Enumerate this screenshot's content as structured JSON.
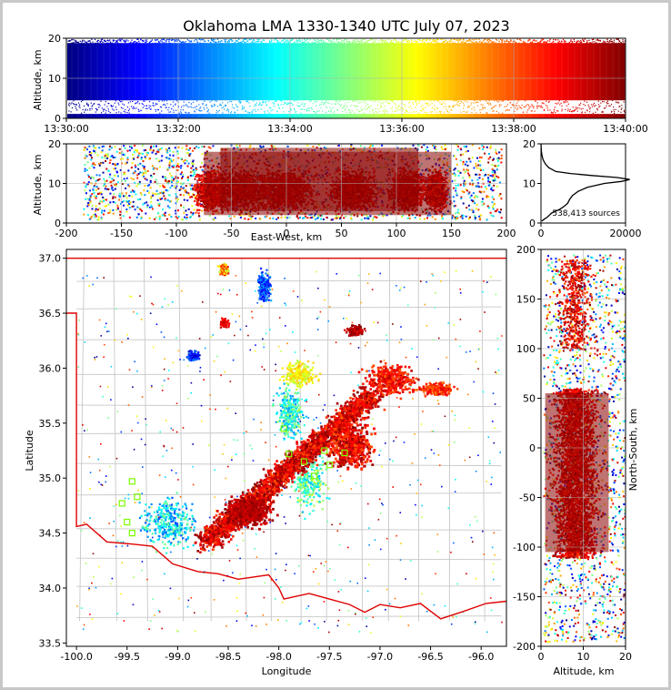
{
  "title": "Oklahoma LMA 1330-1340 UTC July 07, 2023",
  "chart_data": [
    {
      "id": "time_altitude",
      "type": "scatter",
      "xlabel": "",
      "ylabel": "Altitude, km",
      "x_ticks": [
        "13:30:00",
        "13:32:00",
        "13:34:00",
        "13:36:00",
        "13:38:00",
        "13:40:00"
      ],
      "x_range_minutes": [
        0,
        10
      ],
      "ylim": [
        0,
        20
      ],
      "y_ticks": [
        0,
        10,
        20
      ],
      "color_scale": "jet colormap by time, blue (13:30) to dark red (13:40)",
      "grid": true
    },
    {
      "id": "ew_altitude",
      "type": "scatter",
      "xlabel": "East-West, km",
      "ylabel": "Altitude, km",
      "xlim": [
        -200,
        200
      ],
      "x_ticks": [
        -200,
        -150,
        -100,
        -50,
        0,
        50,
        100,
        150,
        200
      ],
      "ylim": [
        0,
        20
      ],
      "y_ticks": [
        0,
        10,
        20
      ],
      "grid": true
    },
    {
      "id": "altitude_histogram",
      "type": "line",
      "xlim": [
        0,
        20000
      ],
      "x_ticks": [
        0,
        20000
      ],
      "ylim": [
        0,
        20
      ],
      "y_ticks": [
        0,
        10,
        20
      ],
      "annotation": "538,413 sources",
      "profile": [
        {
          "alt": 0.5,
          "count": 200
        },
        {
          "alt": 1,
          "count": 800
        },
        {
          "alt": 1.5,
          "count": 1500
        },
        {
          "alt": 2,
          "count": 2000
        },
        {
          "alt": 2.5,
          "count": 2500
        },
        {
          "alt": 3,
          "count": 3500
        },
        {
          "alt": 3.5,
          "count": 4500
        },
        {
          "alt": 4,
          "count": 5200
        },
        {
          "alt": 4.5,
          "count": 5800
        },
        {
          "alt": 5,
          "count": 6300
        },
        {
          "alt": 6,
          "count": 6800
        },
        {
          "alt": 7,
          "count": 7500
        },
        {
          "alt": 8,
          "count": 8800
        },
        {
          "alt": 9,
          "count": 11000
        },
        {
          "alt": 10,
          "count": 15000
        },
        {
          "alt": 10.5,
          "count": 19000
        },
        {
          "alt": 11,
          "count": 21000
        },
        {
          "alt": 11.5,
          "count": 18000
        },
        {
          "alt": 12,
          "count": 12000
        },
        {
          "alt": 12.5,
          "count": 7000
        },
        {
          "alt": 13,
          "count": 3500
        },
        {
          "alt": 14,
          "count": 1800
        },
        {
          "alt": 15,
          "count": 1000
        },
        {
          "alt": 16,
          "count": 500
        },
        {
          "alt": 17,
          "count": 250
        },
        {
          "alt": 18,
          "count": 100
        },
        {
          "alt": 19,
          "count": 40
        },
        {
          "alt": 20,
          "count": 10
        }
      ]
    },
    {
      "id": "plan_view",
      "type": "scatter",
      "xlabel": "Longitude",
      "ylabel": "Latitude",
      "xlim": [
        -100.1,
        -95.75
      ],
      "x_ticks": [
        -100.0,
        -99.5,
        -99.0,
        -98.5,
        -98.0,
        -97.5,
        -97.0,
        -96.5,
        -96.0
      ],
      "ylim": [
        33.47,
        37.08
      ],
      "y_ticks": [
        33.5,
        34.0,
        34.5,
        35.0,
        35.5,
        36.0,
        36.5,
        37.0
      ],
      "stations": [
        {
          "lon": -99.45,
          "lat": 34.97
        },
        {
          "lon": -99.55,
          "lat": 34.77
        },
        {
          "lon": -99.5,
          "lat": 34.6
        },
        {
          "lon": -99.45,
          "lat": 34.5
        },
        {
          "lon": -99.4,
          "lat": 34.83
        },
        {
          "lon": -97.9,
          "lat": 35.22
        },
        {
          "lon": -97.75,
          "lat": 35.15
        },
        {
          "lon": -97.55,
          "lat": 35.25
        },
        {
          "lon": -97.5,
          "lat": 35.12
        },
        {
          "lon": -97.35,
          "lat": 35.23
        },
        {
          "lon": -97.95,
          "lat": 35.45
        },
        {
          "lon": -97.65,
          "lat": 35.02
        }
      ]
    },
    {
      "id": "altitude_ns",
      "type": "scatter",
      "xlabel": "Altitude, km",
      "ylabel": "North-South, km",
      "xlim": [
        0,
        20
      ],
      "x_ticks": [
        0,
        10,
        20
      ],
      "ylim": [
        -200,
        200
      ],
      "y_ticks": [
        -200,
        -150,
        -100,
        -50,
        0,
        50,
        100,
        150,
        200
      ],
      "grid": true
    }
  ]
}
